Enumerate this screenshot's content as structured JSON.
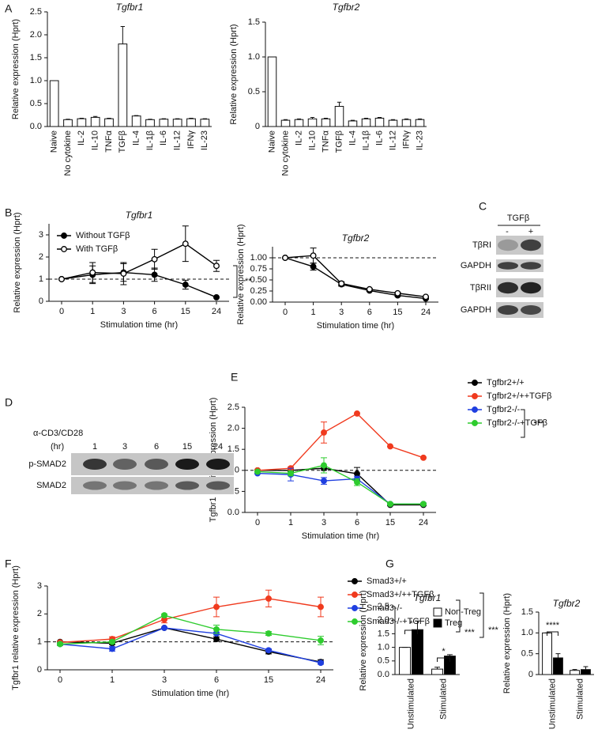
{
  "panel_labels": [
    "A",
    "B",
    "C",
    "D",
    "E",
    "F",
    "G"
  ],
  "chart_data": [
    {
      "type": "bar",
      "title": "Tgfbr1",
      "y_label": "Relative expression (Hprt)",
      "categories": [
        "Naive",
        "No cytokine",
        "IL-2",
        "IL-10",
        "TNFα",
        "TGFβ",
        "IL-4",
        "IL-1β",
        "IL-6",
        "IL-12",
        "IFNγ",
        "IL-23"
      ],
      "values": [
        1,
        0.15,
        0.17,
        0.2,
        0.17,
        1.8,
        0.23,
        0.15,
        0.16,
        0.16,
        0.17,
        0.16
      ],
      "errors": [
        0,
        0.01,
        0.01,
        0.02,
        0.01,
        0.38,
        0.01,
        0.01,
        0.01,
        0.01,
        0.01,
        0.01
      ],
      "color": "#ffffff",
      "ylim": [
        0,
        2.5
      ],
      "yticks": [
        {
          "value": 0,
          "label": "0.0"
        },
        0.5,
        {
          "value": 1,
          "label": "1.0"
        },
        1.5,
        {
          "value": 2,
          "label": "2.0"
        },
        2.5
      ]
    },
    {
      "type": "bar",
      "title": "Tgfbr2",
      "y_label": "Relative expression (Hprt)",
      "categories": [
        "Naive",
        "No cytokine",
        "IL-2",
        "IL-10",
        "TNFα",
        "TGFβ",
        "IL-4",
        "IL-1β",
        "IL-6",
        "IL-12",
        "IFNγ",
        "IL-23"
      ],
      "values": [
        1,
        0.09,
        0.1,
        0.11,
        0.11,
        0.29,
        0.08,
        0.11,
        0.12,
        0.09,
        0.1,
        0.1
      ],
      "errors": [
        0,
        0.01,
        0.01,
        0.02,
        0.01,
        0.06,
        0.01,
        0.01,
        0.01,
        0.01,
        0.01,
        0.01
      ],
      "color": "#ffffff",
      "ylim": [
        0,
        1.5
      ],
      "yticks": [
        0,
        0.5,
        {
          "value": 1,
          "label": "1.0"
        },
        1.5
      ]
    },
    {
      "type": "line",
      "title": "Tgfbr1",
      "y_label": "Relative expression (Hprt)",
      "x_label": "Stimulation time (hr)",
      "categories": [
        "0",
        "1",
        "3",
        "6",
        "15",
        "24"
      ],
      "series": [
        {
          "name": "Without TGFβ",
          "color": "#000000",
          "marker": "filled",
          "values": [
            1,
            1.2,
            1.3,
            1.2,
            0.75,
            0.18
          ],
          "errors": [
            0,
            0.4,
            0.4,
            0.3,
            0.2,
            0
          ]
        },
        {
          "name": "With TGFβ",
          "color": "#000000",
          "marker": "open",
          "values": [
            1,
            1.3,
            1.25,
            1.9,
            2.6,
            1.6
          ],
          "errors": [
            0,
            0.45,
            0.5,
            0.45,
            0.8,
            0.25
          ]
        }
      ],
      "reference_line": 1,
      "annotations": [
        "**"
      ],
      "ylim": [
        0,
        3.5
      ],
      "yticks": [
        0,
        1,
        2,
        3
      ]
    },
    {
      "type": "line",
      "title": "Tgfbr2",
      "y_label": "Relative expression (Hprt)",
      "x_label": "Stimulation time (hr)",
      "categories": [
        "0",
        "1",
        "3",
        "6",
        "15",
        "24"
      ],
      "series": [
        {
          "color": "#000000",
          "marker": "filled",
          "values": [
            1,
            0.8,
            0.4,
            0.26,
            0.15,
            0.08
          ],
          "errors": [
            0,
            0.08,
            0.04,
            0.02,
            0.02,
            0.01
          ]
        },
        {
          "color": "#000000",
          "marker": "open",
          "values": [
            1,
            1.05,
            0.42,
            0.29,
            0.2,
            0.12
          ],
          "errors": [
            0,
            0.17,
            0.04,
            0.02,
            0.02,
            0.01
          ]
        }
      ],
      "reference_line": 1,
      "ylim": [
        0,
        1.25
      ],
      "yticks": [
        {
          "value": 0,
          "label": "0.00"
        },
        0.25,
        {
          "value": 0.5,
          "label": "0.50"
        },
        0.75,
        {
          "value": 1,
          "label": "1.00"
        }
      ]
    },
    {
      "type": "line",
      "y_label": "Tgfbr1 relative expression (Hprt)",
      "x_label": "Stimulation time (hr)",
      "categories": [
        "0",
        "1",
        "3",
        "6",
        "15",
        "24"
      ],
      "series": [
        {
          "name": "Tgfbr2+/+",
          "color": "#000000",
          "marker": "filled",
          "values": [
            1,
            1,
            1.05,
            0.92,
            0.18,
            0.18
          ],
          "errors": [
            0,
            0.03,
            0.05,
            0.15,
            0.02,
            0.02
          ]
        },
        {
          "name": "Tgfbr2+/++TGFβ",
          "color": "#f03a1e",
          "marker": "filled",
          "values": [
            1,
            1.05,
            1.9,
            2.35,
            1.57,
            1.3
          ],
          "errors": [
            0,
            0.03,
            0.25,
            0,
            0,
            0
          ]
        },
        {
          "name": "Tgfbr2-/-",
          "color": "#1f3fe0",
          "marker": "filled",
          "values": [
            0.93,
            0.9,
            0.75,
            0.8,
            0.2,
            0.2
          ],
          "errors": [
            0,
            0.15,
            0.08,
            0.06,
            0.02,
            0.02
          ]
        },
        {
          "name": "Tgfbr2-/-+TGFβ",
          "color": "#2ecc2e",
          "marker": "filled",
          "values": [
            0.97,
            0.93,
            1.12,
            0.72,
            0.2,
            0.2
          ],
          "errors": [
            0,
            0.06,
            0.18,
            0.08,
            0.02,
            0.02
          ]
        }
      ],
      "reference_line": 1,
      "annotations": [
        "***"
      ],
      "ylim": [
        0,
        2.5
      ],
      "yticks": [
        {
          "value": 0,
          "label": "0.0"
        },
        0.5,
        {
          "value": 1,
          "label": "1.0"
        },
        1.5,
        {
          "value": 2,
          "label": "2.0"
        },
        2.5
      ]
    },
    {
      "type": "line",
      "y_label": "Tgfbr1 relative expression (Hprt)",
      "x_label": "Stimulation time (hr)",
      "categories": [
        "0",
        "1",
        "3",
        "6",
        "15",
        "24"
      ],
      "series": [
        {
          "name": "Smad3+/+",
          "color": "#000000",
          "marker": "filled",
          "values": [
            1,
            0.95,
            1.5,
            1.1,
            0.65,
            0.28
          ],
          "errors": [
            0,
            0.05,
            0.03,
            0.08,
            0.08,
            0.08
          ]
        },
        {
          "name": "Smad3+/++TGFβ",
          "color": "#f03a1e",
          "marker": "filled",
          "values": [
            0.98,
            1.1,
            1.8,
            2.25,
            2.55,
            2.25
          ],
          "errors": [
            0,
            0.08,
            0.12,
            0.35,
            0.3,
            0.35
          ]
        },
        {
          "name": "Smad3-/-",
          "color": "#1f3fe0",
          "marker": "filled",
          "values": [
            0.92,
            0.75,
            1.5,
            1.3,
            0.7,
            0.25
          ],
          "errors": [
            0.05,
            0.08,
            0.03,
            0.05,
            0.05,
            0.05
          ]
        },
        {
          "name": "Smad3-/-+TGFβ",
          "color": "#2ecc2e",
          "marker": "filled",
          "values": [
            0.92,
            1,
            1.95,
            1.45,
            1.3,
            1.05
          ],
          "errors": [
            0.05,
            0.05,
            0.05,
            0.15,
            0.07,
            0.15
          ]
        }
      ],
      "reference_line": 1,
      "annotations": [
        "***",
        "***"
      ],
      "ylim": [
        0,
        3
      ],
      "yticks": [
        0,
        1,
        2,
        3
      ]
    },
    {
      "type": "bar",
      "title": "Tgfbr1",
      "y_label": "Relative expression (Hprt)",
      "categories": [
        "Unstimulated",
        "Stimulated"
      ],
      "series": [
        {
          "name": "Non-Treg",
          "color": "#ffffff",
          "values": [
            1,
            0.2
          ],
          "errors": [
            0,
            0.07
          ]
        },
        {
          "name": "Treg",
          "color": "#000000",
          "values": [
            1.65,
            0.68
          ],
          "errors": [
            0.32,
            0.05
          ]
        }
      ],
      "annotations": [
        "*",
        "*"
      ],
      "ylim": [
        0,
        2.5
      ],
      "yticks": [
        {
          "value": 0,
          "label": "0.0"
        },
        0.5,
        {
          "value": 1,
          "label": "1.0"
        },
        1.5,
        {
          "value": 2,
          "label": "2.0"
        },
        2.5
      ]
    },
    {
      "type": "bar",
      "title": "Tgfbr2",
      "y_label": "Relative expression (Hprt)",
      "categories": [
        "Unstimulated",
        "Stimulated"
      ],
      "series": [
        {
          "color": "#ffffff",
          "values": [
            1,
            0.1
          ],
          "errors": [
            0,
            0.02
          ]
        },
        {
          "color": "#000000",
          "values": [
            0.4,
            0.12
          ],
          "errors": [
            0.1,
            0.07
          ]
        }
      ],
      "annotations": [
        "****"
      ],
      "ylim": [
        0,
        1.5
      ],
      "yticks": [
        0,
        0.5,
        {
          "value": 1,
          "label": "1.0"
        },
        1.5
      ]
    }
  ],
  "blots": [
    {
      "header": "TGFβ",
      "lanes": [
        "-",
        "+"
      ],
      "rows": [
        "TβRI",
        "GAPDH",
        "TβRII",
        "GAPDH"
      ]
    },
    {
      "header": "α-CD3/CD28",
      "unit": "(hr)",
      "lanes": [
        "1",
        "3",
        "6",
        "15",
        "24"
      ],
      "rows": [
        "p-SMAD2",
        "SMAD2"
      ]
    }
  ]
}
